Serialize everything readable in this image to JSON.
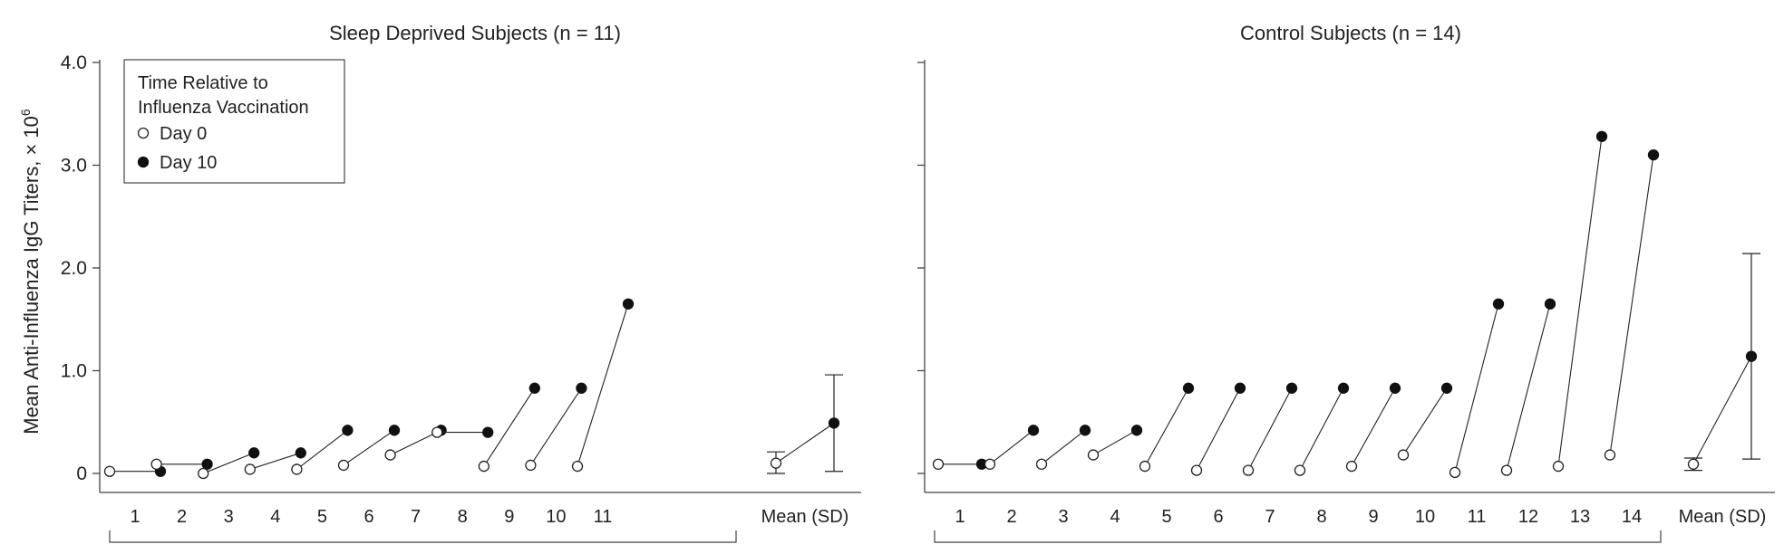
{
  "ylabel": "Mean Anti-Influenza IgG Titers, × 10",
  "ylabel_exp": "6",
  "legend": {
    "title_line1": "Time Relative to",
    "title_line2": "Influenza Vaccination",
    "day0": "Day 0",
    "day10": "Day 10"
  },
  "chart_data": [
    {
      "type": "scatter",
      "title": "Sleep Deprived Subjects (n = 11)",
      "ylim": [
        0,
        4.0
      ],
      "yticks": [
        "0",
        "1.0",
        "2.0",
        "3.0",
        "4.0"
      ],
      "ytick_values": [
        0,
        1.0,
        2.0,
        3.0,
        4.0
      ],
      "categories": [
        "1",
        "2",
        "3",
        "4",
        "5",
        "6",
        "7",
        "8",
        "9",
        "10",
        "11"
      ],
      "day0": [
        0.02,
        0.09,
        0.0,
        0.04,
        0.04,
        0.08,
        0.18,
        0.4,
        0.07,
        0.08,
        0.07
      ],
      "day10": [
        0.02,
        0.09,
        0.2,
        0.2,
        0.42,
        0.42,
        0.42,
        0.4,
        0.83,
        0.83,
        1.65
      ],
      "mean_label": "Mean (SD)",
      "mean": {
        "day0": 0.1,
        "day0_sd": 0.11,
        "day10": 0.49,
        "day10_sd": 0.47
      }
    },
    {
      "type": "scatter",
      "title": "Control Subjects (n = 14)",
      "ylim": [
        0,
        4.0
      ],
      "yticks": [
        "0",
        "1.0",
        "2.0",
        "3.0",
        "4.0"
      ],
      "ytick_values": [
        0,
        1.0,
        2.0,
        3.0,
        4.0
      ],
      "categories": [
        "1",
        "2",
        "3",
        "4",
        "5",
        "6",
        "7",
        "8",
        "9",
        "10",
        "11",
        "12",
        "13",
        "14"
      ],
      "day0": [
        0.09,
        0.09,
        0.09,
        0.18,
        0.07,
        0.03,
        0.03,
        0.03,
        0.07,
        0.18,
        0.01,
        0.03,
        0.07,
        0.18
      ],
      "day10": [
        0.09,
        0.42,
        0.42,
        0.42,
        0.83,
        0.83,
        0.83,
        0.83,
        0.83,
        0.83,
        1.65,
        1.65,
        3.28,
        3.1
      ],
      "mean_label": "Mean (SD)",
      "mean": {
        "day0": 0.09,
        "day0_sd": 0.06,
        "day10": 1.14,
        "day10_sd": 1.0
      }
    }
  ]
}
